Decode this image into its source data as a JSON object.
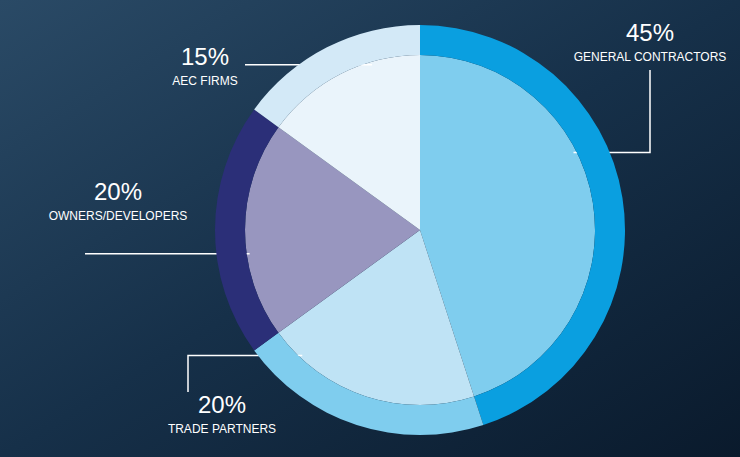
{
  "chart_data": {
    "type": "pie",
    "categories": [
      "GENERAL CONTRACTORS",
      "TRADE PARTNERS",
      "OWNERS/DEVELOPERS",
      "AEC FIRMS"
    ],
    "values": [
      45,
      20,
      20,
      15
    ],
    "value_labels": [
      "45%",
      "20%",
      "20%",
      "15%"
    ],
    "colors": [
      "#0a9fe0",
      "#7fcdee",
      "#2b2f78",
      "#d3e9f7"
    ],
    "data_labels": true
  }
}
